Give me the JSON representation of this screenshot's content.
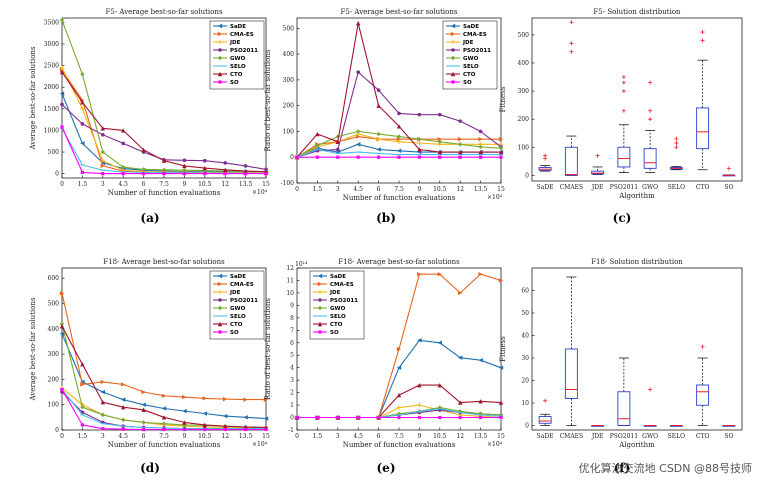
{
  "colors": {
    "SaDE": "#1f6fb2",
    "CMA-ES": "#e8651e",
    "JDE": "#f2b519",
    "PSO2011": "#7e2f8e",
    "GWO": "#77ac30",
    "SELO": "#4dbeee",
    "CTO": "#a2142f",
    "SO": "#ff00ff"
  },
  "watermark": "优化算法交流地 CSDN @88号技师",
  "chart_data": [
    {
      "id": "a",
      "panel_label": "(a)",
      "type": "line",
      "title": "F5- Average best-so-far solutions",
      "xlabel": "Number of function evaluations",
      "ylabel": "Average best-so-far solutions",
      "exponent": "×10⁴",
      "xlim": [
        0,
        15
      ],
      "ylim": [
        -100,
        3600
      ],
      "xticks": [
        0,
        1.5,
        3,
        4.5,
        6,
        7.5,
        9,
        10.5,
        12,
        13.5,
        15
      ],
      "xtick_labels": [
        "0",
        "1.5",
        "3",
        "4.5",
        "6",
        "7.5",
        "9",
        "10.5",
        "12",
        "13.5",
        "15"
      ],
      "yticks": [
        0,
        500,
        1000,
        1500,
        2000,
        2500,
        3000,
        3500
      ],
      "ytick_labels": [
        "0",
        "500",
        "1000",
        "1500",
        "2000",
        "2500",
        "3000",
        "3500"
      ],
      "legend": [
        "SaDE",
        "CMA-ES",
        "JDE",
        "PSO2011",
        "GWO",
        "SELO",
        "CTO",
        "SO"
      ],
      "x": [
        0,
        1.5,
        3,
        4.5,
        6,
        7.5,
        9,
        10.5,
        12,
        13.5,
        15
      ],
      "series": [
        {
          "name": "SaDE",
          "values": [
            1850,
            700,
            250,
            120,
            80,
            60,
            50,
            45,
            40,
            35,
            30
          ]
        },
        {
          "name": "CMA-ES",
          "values": [
            2400,
            1700,
            180,
            60,
            40,
            30,
            25,
            22,
            20,
            18,
            15
          ]
        },
        {
          "name": "JDE",
          "values": [
            2450,
            1500,
            300,
            80,
            50,
            40,
            35,
            30,
            28,
            25,
            25
          ]
        },
        {
          "name": "PSO2011",
          "values": [
            1600,
            1150,
            900,
            700,
            500,
            320,
            310,
            300,
            250,
            180,
            100
          ]
        },
        {
          "name": "GWO",
          "values": [
            3550,
            2300,
            500,
            150,
            100,
            90,
            80,
            70,
            60,
            50,
            45
          ]
        },
        {
          "name": "SELO",
          "values": [
            1050,
            200,
            80,
            40,
            30,
            25,
            20,
            18,
            15,
            12,
            10
          ]
        },
        {
          "name": "CTO",
          "values": [
            2350,
            1650,
            1050,
            1000,
            550,
            300,
            180,
            130,
            90,
            60,
            50
          ]
        },
        {
          "name": "SO",
          "values": [
            1080,
            30,
            2,
            1,
            1,
            1,
            1,
            1,
            1,
            1,
            1
          ]
        }
      ]
    },
    {
      "id": "b",
      "panel_label": "(b)",
      "type": "line",
      "title": "F5- Average best-so-far solutions",
      "xlabel": "Number of function evaluations",
      "ylabel": "Ratio of best-so-far solutions",
      "exponent": "×10⁴",
      "xlim": [
        0,
        15
      ],
      "ylim": [
        -100,
        540
      ],
      "xticks": [
        0,
        1.5,
        3,
        4.5,
        6,
        7.5,
        9,
        10.5,
        12,
        13.5,
        15
      ],
      "xtick_labels": [
        "0",
        "1.5",
        "3",
        "4.5",
        "6",
        "7.5",
        "9",
        "10.5",
        "12",
        "13.5",
        "15"
      ],
      "yticks": [
        -100,
        0,
        100,
        200,
        300,
        400,
        500
      ],
      "ytick_labels": [
        "-100",
        "0",
        "100",
        "200",
        "300",
        "400",
        "500"
      ],
      "legend": [
        "SaDE",
        "CMA-ES",
        "JDE",
        "PSO2011",
        "GWO",
        "SELO",
        "CTO",
        "SO"
      ],
      "x": [
        0,
        1.5,
        3,
        4.5,
        6,
        7.5,
        9,
        10.5,
        12,
        13.5,
        15
      ],
      "series": [
        {
          "name": "SaDE",
          "values": [
            0,
            35,
            20,
            50,
            30,
            25,
            20,
            20,
            20,
            20,
            20
          ]
        },
        {
          "name": "CMA-ES",
          "values": [
            0,
            50,
            60,
            80,
            70,
            70,
            70,
            70,
            70,
            70,
            70
          ]
        },
        {
          "name": "JDE",
          "values": [
            0,
            40,
            60,
            90,
            70,
            60,
            55,
            50,
            50,
            50,
            50
          ]
        },
        {
          "name": "PSO2011",
          "values": [
            0,
            25,
            30,
            330,
            260,
            170,
            165,
            165,
            140,
            100,
            40
          ]
        },
        {
          "name": "GWO",
          "values": [
            0,
            45,
            80,
            100,
            90,
            80,
            70,
            60,
            50,
            40,
            35
          ]
        },
        {
          "name": "SELO",
          "values": [
            0,
            30,
            15,
            20,
            15,
            10,
            10,
            10,
            10,
            10,
            10
          ]
        },
        {
          "name": "CTO",
          "values": [
            0,
            90,
            60,
            520,
            200,
            120,
            30,
            20,
            20,
            20,
            20
          ]
        },
        {
          "name": "SO",
          "values": [
            0,
            0,
            0,
            0,
            0,
            0,
            0,
            0,
            0,
            0,
            0
          ]
        }
      ]
    },
    {
      "id": "c",
      "panel_label": "(c)",
      "type": "box",
      "title": "F5- Solution distribution",
      "xlabel": "Algorithm",
      "ylabel": "Fitness",
      "ylim": [
        -20,
        560
      ],
      "yticks": [
        0,
        100,
        200,
        300,
        400,
        500
      ],
      "ytick_labels": [
        "0",
        "100",
        "200",
        "300",
        "400",
        "500"
      ],
      "categories": [
        "SaDE",
        "CMAES",
        "JDE",
        "PSO2011",
        "GWO",
        "SELO",
        "CTO",
        "SO"
      ],
      "boxes": [
        {
          "name": "SaDE",
          "whislo": 15,
          "q1": 18,
          "med": 22,
          "q3": 28,
          "whishi": 35,
          "fliers": [
            60,
            70
          ]
        },
        {
          "name": "CMAES",
          "whislo": 0,
          "q1": 0,
          "med": 3,
          "q3": 100,
          "whishi": 140,
          "fliers": [
            440,
            470,
            545
          ]
        },
        {
          "name": "JDE",
          "whislo": 3,
          "q1": 5,
          "med": 8,
          "q3": 15,
          "whishi": 30,
          "fliers": [
            70
          ]
        },
        {
          "name": "PSO2011",
          "whislo": 10,
          "q1": 30,
          "med": 60,
          "q3": 100,
          "whishi": 180,
          "fliers": [
            230,
            300,
            330,
            350
          ]
        },
        {
          "name": "GWO",
          "whislo": 10,
          "q1": 25,
          "med": 45,
          "q3": 95,
          "whishi": 160,
          "fliers": [
            200,
            230,
            330
          ]
        },
        {
          "name": "SELO",
          "whislo": 20,
          "q1": 22,
          "med": 25,
          "q3": 28,
          "whishi": 32,
          "fliers": [
            100,
            115,
            130
          ]
        },
        {
          "name": "CTO",
          "whislo": 20,
          "q1": 95,
          "med": 155,
          "q3": 240,
          "whishi": 410,
          "fliers": [
            480,
            510
          ]
        },
        {
          "name": "SO",
          "whislo": 0,
          "q1": 0,
          "med": 0,
          "q3": 1,
          "whishi": 2,
          "fliers": [
            25
          ]
        }
      ]
    },
    {
      "id": "d",
      "panel_label": "(d)",
      "type": "line",
      "title": "F18- Average best-so-far solutions",
      "xlabel": "Number of function evaluations",
      "ylabel": "Average best-so-far solutions",
      "exponent": "×10⁴",
      "xlim": [
        0,
        15
      ],
      "ylim": [
        0,
        640
      ],
      "xticks": [
        0,
        1.5,
        3,
        4.5,
        6,
        7.5,
        9,
        10.5,
        12,
        13.5,
        15
      ],
      "xtick_labels": [
        "0",
        "1.5",
        "3",
        "4.5",
        "6",
        "7.5",
        "9",
        "10.5",
        "12",
        "13.5",
        "15"
      ],
      "yticks": [
        0,
        100,
        200,
        300,
        400,
        500,
        600
      ],
      "ytick_labels": [
        "0",
        "100",
        "200",
        "300",
        "400",
        "500",
        "600"
      ],
      "legend": [
        "SaDE",
        "CMA-ES",
        "JDE",
        "PSO2011",
        "GWO",
        "SELO",
        "CTO",
        "SO"
      ],
      "x": [
        0,
        1.5,
        3,
        4.5,
        6,
        7.5,
        9,
        10.5,
        12,
        13.5,
        15
      ],
      "series": [
        {
          "name": "SaDE",
          "values": [
            380,
            190,
            150,
            120,
            100,
            85,
            75,
            65,
            55,
            50,
            45
          ]
        },
        {
          "name": "CMA-ES",
          "values": [
            540,
            180,
            190,
            180,
            150,
            135,
            130,
            125,
            122,
            120,
            120
          ]
        },
        {
          "name": "JDE",
          "values": [
            165,
            100,
            60,
            40,
            30,
            20,
            15,
            12,
            10,
            8,
            8
          ]
        },
        {
          "name": "PSO2011",
          "values": [
            150,
            70,
            30,
            15,
            10,
            8,
            5,
            5,
            5,
            5,
            5
          ]
        },
        {
          "name": "GWO",
          "values": [
            420,
            90,
            60,
            40,
            30,
            25,
            20,
            18,
            15,
            12,
            10
          ]
        },
        {
          "name": "SELO",
          "values": [
            160,
            60,
            25,
            15,
            10,
            8,
            5,
            5,
            5,
            5,
            5
          ]
        },
        {
          "name": "CTO",
          "values": [
            410,
            260,
            110,
            90,
            80,
            50,
            30,
            20,
            15,
            12,
            10
          ]
        },
        {
          "name": "SO",
          "values": [
            160,
            20,
            5,
            3,
            2,
            2,
            2,
            2,
            2,
            2,
            2
          ]
        }
      ]
    },
    {
      "id": "e",
      "panel_label": "(e)",
      "type": "line",
      "title": "F18- Average best-so-far solutions",
      "xlabel": "Number of function evaluations",
      "ylabel": "Ratio of best-so-far solutions",
      "exponent": "×10⁴",
      "y_exponent": "10¹⁴",
      "xlim": [
        0,
        15
      ],
      "ylim": [
        -1,
        12
      ],
      "xticks": [
        0,
        1.5,
        3,
        4.5,
        6,
        7.5,
        9,
        10.5,
        12,
        13.5,
        15
      ],
      "xtick_labels": [
        "0",
        "1.5",
        "3",
        "4.5",
        "6",
        "7.5",
        "9",
        "10.5",
        "12",
        "13.5",
        "15"
      ],
      "yticks": [
        -1,
        0,
        1,
        2,
        3,
        4,
        5,
        6,
        7,
        8,
        9,
        10,
        11,
        12
      ],
      "ytick_labels": [
        "-1",
        "0",
        "1",
        "2",
        "3",
        "4",
        "5",
        "6",
        "7",
        "8",
        "9",
        "10",
        "11",
        "12"
      ],
      "legend": [
        "SaDE",
        "CMA-ES",
        "JDE",
        "PSO2011",
        "GWO",
        "SELO",
        "CTO",
        "SO"
      ],
      "x": [
        0,
        1.5,
        3,
        4.5,
        6,
        7.5,
        9,
        10.5,
        12,
        13.5,
        15
      ],
      "series": [
        {
          "name": "SaDE",
          "values": [
            0,
            0,
            0,
            0,
            0,
            4,
            6.2,
            6,
            4.8,
            4.6,
            4
          ]
        },
        {
          "name": "CMA-ES",
          "values": [
            0,
            0,
            0,
            0,
            0,
            5.5,
            11.5,
            11.5,
            10,
            11.5,
            11
          ]
        },
        {
          "name": "JDE",
          "values": [
            0,
            0,
            0,
            0,
            0,
            0.8,
            1,
            0.6,
            0.2,
            0.1,
            0
          ]
        },
        {
          "name": "PSO2011",
          "values": [
            0,
            0,
            0,
            0,
            0,
            0.2,
            0.4,
            0.6,
            0.4,
            0.3,
            0.2
          ]
        },
        {
          "name": "GWO",
          "values": [
            0,
            0,
            0,
            0,
            0,
            0.3,
            0.5,
            0.8,
            0.5,
            0.3,
            0.2
          ]
        },
        {
          "name": "SELO",
          "values": [
            0,
            0,
            0,
            0,
            0,
            0.2,
            0.5,
            0.7,
            0.4,
            0.2,
            0.1
          ]
        },
        {
          "name": "CTO",
          "values": [
            0,
            0,
            0,
            0,
            0,
            1.8,
            2.6,
            2.6,
            1.2,
            1.3,
            1.2
          ]
        },
        {
          "name": "SO",
          "values": [
            0,
            0,
            0,
            0,
            0,
            0,
            0,
            0,
            0,
            0,
            0
          ]
        }
      ]
    },
    {
      "id": "f",
      "panel_label": "(f)",
      "type": "box",
      "title": "F18- Solution distribution",
      "xlabel": "Algorithm",
      "ylabel": "Fitness",
      "ylim": [
        -2,
        70
      ],
      "yticks": [
        0,
        10,
        20,
        30,
        40,
        50,
        60
      ],
      "ytick_labels": [
        "0",
        "10",
        "20",
        "30",
        "40",
        "50",
        "60"
      ],
      "categories": [
        "SaDE",
        "CMAES",
        "JDE",
        "PSO2011",
        "GWO",
        "SELO",
        "CTO",
        "SO"
      ],
      "boxes": [
        {
          "name": "SaDE",
          "whislo": 0,
          "q1": 1,
          "med": 2,
          "q3": 4,
          "whishi": 5,
          "fliers": [
            11
          ]
        },
        {
          "name": "CMAES",
          "whislo": 0,
          "q1": 12,
          "med": 16,
          "q3": 34,
          "whishi": 66,
          "fliers": []
        },
        {
          "name": "JDE",
          "whislo": 0,
          "q1": 0,
          "med": 0,
          "q3": 0,
          "whishi": 0,
          "fliers": []
        },
        {
          "name": "PSO2011",
          "whislo": 0,
          "q1": 0,
          "med": 3,
          "q3": 15,
          "whishi": 30,
          "fliers": []
        },
        {
          "name": "GWO",
          "whislo": 0,
          "q1": 0,
          "med": 0,
          "q3": 0,
          "whishi": 0,
          "fliers": [
            16
          ]
        },
        {
          "name": "SELO",
          "whislo": 0,
          "q1": 0,
          "med": 0,
          "q3": 0,
          "whishi": 0,
          "fliers": []
        },
        {
          "name": "CTO",
          "whislo": 0,
          "q1": 9,
          "med": 15,
          "q3": 18,
          "whishi": 30,
          "fliers": [
            35
          ]
        },
        {
          "name": "SO",
          "whislo": 0,
          "q1": 0,
          "med": 0,
          "q3": 0,
          "whishi": 0,
          "fliers": []
        }
      ]
    }
  ]
}
